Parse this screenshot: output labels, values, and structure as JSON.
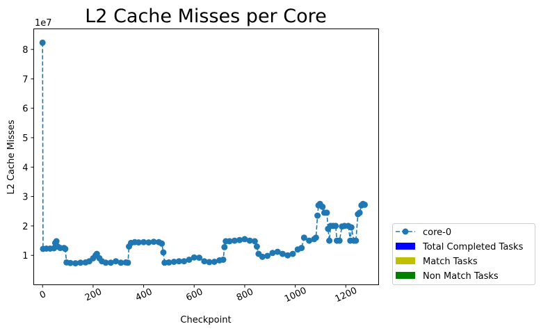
{
  "chart_data": {
    "type": "line",
    "title": "L2 Cache Misses per Core",
    "xlabel": "Checkpoint",
    "ylabel": "L2 Cache Misses",
    "y_offset_label": "1e7",
    "xlim": [
      -35,
      1330
    ],
    "ylim": [
      0,
      8.7
    ],
    "x_ticks": [
      0,
      200,
      400,
      600,
      800,
      1000,
      1200
    ],
    "y_ticks": [
      1,
      2,
      3,
      4,
      5,
      6,
      7,
      8
    ],
    "x_tick_rotation": 25,
    "grid": false,
    "legend_position": "outside-lower-right",
    "series_color": "#1f77b4",
    "series": [
      {
        "name": "core-0",
        "style": "dashed-with-circle-markers",
        "points": [
          [
            0,
            8.23
          ],
          [
            2,
            1.22
          ],
          [
            15,
            1.23
          ],
          [
            30,
            1.23
          ],
          [
            45,
            1.24
          ],
          [
            50,
            1.42
          ],
          [
            55,
            1.48
          ],
          [
            60,
            1.3
          ],
          [
            70,
            1.25
          ],
          [
            85,
            1.25
          ],
          [
            90,
            1.22
          ],
          [
            95,
            0.76
          ],
          [
            110,
            0.74
          ],
          [
            130,
            0.73
          ],
          [
            150,
            0.75
          ],
          [
            170,
            0.76
          ],
          [
            185,
            0.8
          ],
          [
            200,
            0.9
          ],
          [
            210,
            1.0
          ],
          [
            215,
            1.05
          ],
          [
            225,
            0.9
          ],
          [
            235,
            0.8
          ],
          [
            250,
            0.75
          ],
          [
            270,
            0.75
          ],
          [
            290,
            0.8
          ],
          [
            310,
            0.75
          ],
          [
            330,
            0.76
          ],
          [
            338,
            0.75
          ],
          [
            342,
            1.3
          ],
          [
            350,
            1.42
          ],
          [
            365,
            1.45
          ],
          [
            380,
            1.44
          ],
          [
            400,
            1.45
          ],
          [
            420,
            1.44
          ],
          [
            440,
            1.46
          ],
          [
            460,
            1.45
          ],
          [
            472,
            1.4
          ],
          [
            478,
            1.1
          ],
          [
            483,
            0.75
          ],
          [
            500,
            0.76
          ],
          [
            520,
            0.78
          ],
          [
            540,
            0.8
          ],
          [
            560,
            0.8
          ],
          [
            580,
            0.85
          ],
          [
            600,
            0.93
          ],
          [
            620,
            0.92
          ],
          [
            640,
            0.8
          ],
          [
            660,
            0.77
          ],
          [
            680,
            0.78
          ],
          [
            700,
            0.83
          ],
          [
            715,
            0.85
          ],
          [
            720,
            1.28
          ],
          [
            725,
            1.48
          ],
          [
            740,
            1.48
          ],
          [
            760,
            1.5
          ],
          [
            780,
            1.52
          ],
          [
            800,
            1.55
          ],
          [
            820,
            1.5
          ],
          [
            840,
            1.48
          ],
          [
            848,
            1.3
          ],
          [
            855,
            1.05
          ],
          [
            870,
            0.95
          ],
          [
            890,
            0.98
          ],
          [
            910,
            1.08
          ],
          [
            930,
            1.12
          ],
          [
            950,
            1.05
          ],
          [
            970,
            1.0
          ],
          [
            990,
            1.05
          ],
          [
            1010,
            1.2
          ],
          [
            1025,
            1.25
          ],
          [
            1035,
            1.6
          ],
          [
            1055,
            1.5
          ],
          [
            1075,
            1.55
          ],
          [
            1082,
            1.6
          ],
          [
            1088,
            2.35
          ],
          [
            1092,
            2.7
          ],
          [
            1098,
            2.75
          ],
          [
            1108,
            2.65
          ],
          [
            1115,
            2.45
          ],
          [
            1125,
            2.45
          ],
          [
            1130,
            1.9
          ],
          [
            1135,
            1.5
          ],
          [
            1140,
            2.0
          ],
          [
            1150,
            2.0
          ],
          [
            1160,
            2.0
          ],
          [
            1165,
            1.5
          ],
          [
            1175,
            1.5
          ],
          [
            1185,
            1.98
          ],
          [
            1195,
            2.0
          ],
          [
            1210,
            2.0
          ],
          [
            1218,
            1.5
          ],
          [
            1222,
            1.95
          ],
          [
            1232,
            1.5
          ],
          [
            1240,
            1.5
          ],
          [
            1248,
            2.4
          ],
          [
            1255,
            2.45
          ],
          [
            1262,
            2.7
          ],
          [
            1268,
            2.75
          ],
          [
            1275,
            2.72
          ]
        ]
      }
    ],
    "legend_entries": [
      {
        "label": "core-0",
        "kind": "line",
        "color": "#1f77b4"
      },
      {
        "label": "Total Completed Tasks",
        "kind": "patch",
        "color": "#0000ff"
      },
      {
        "label": "Match Tasks",
        "kind": "patch",
        "color": "#bfbf00"
      },
      {
        "label": "Non Match Tasks",
        "kind": "patch",
        "color": "#008000"
      }
    ]
  }
}
